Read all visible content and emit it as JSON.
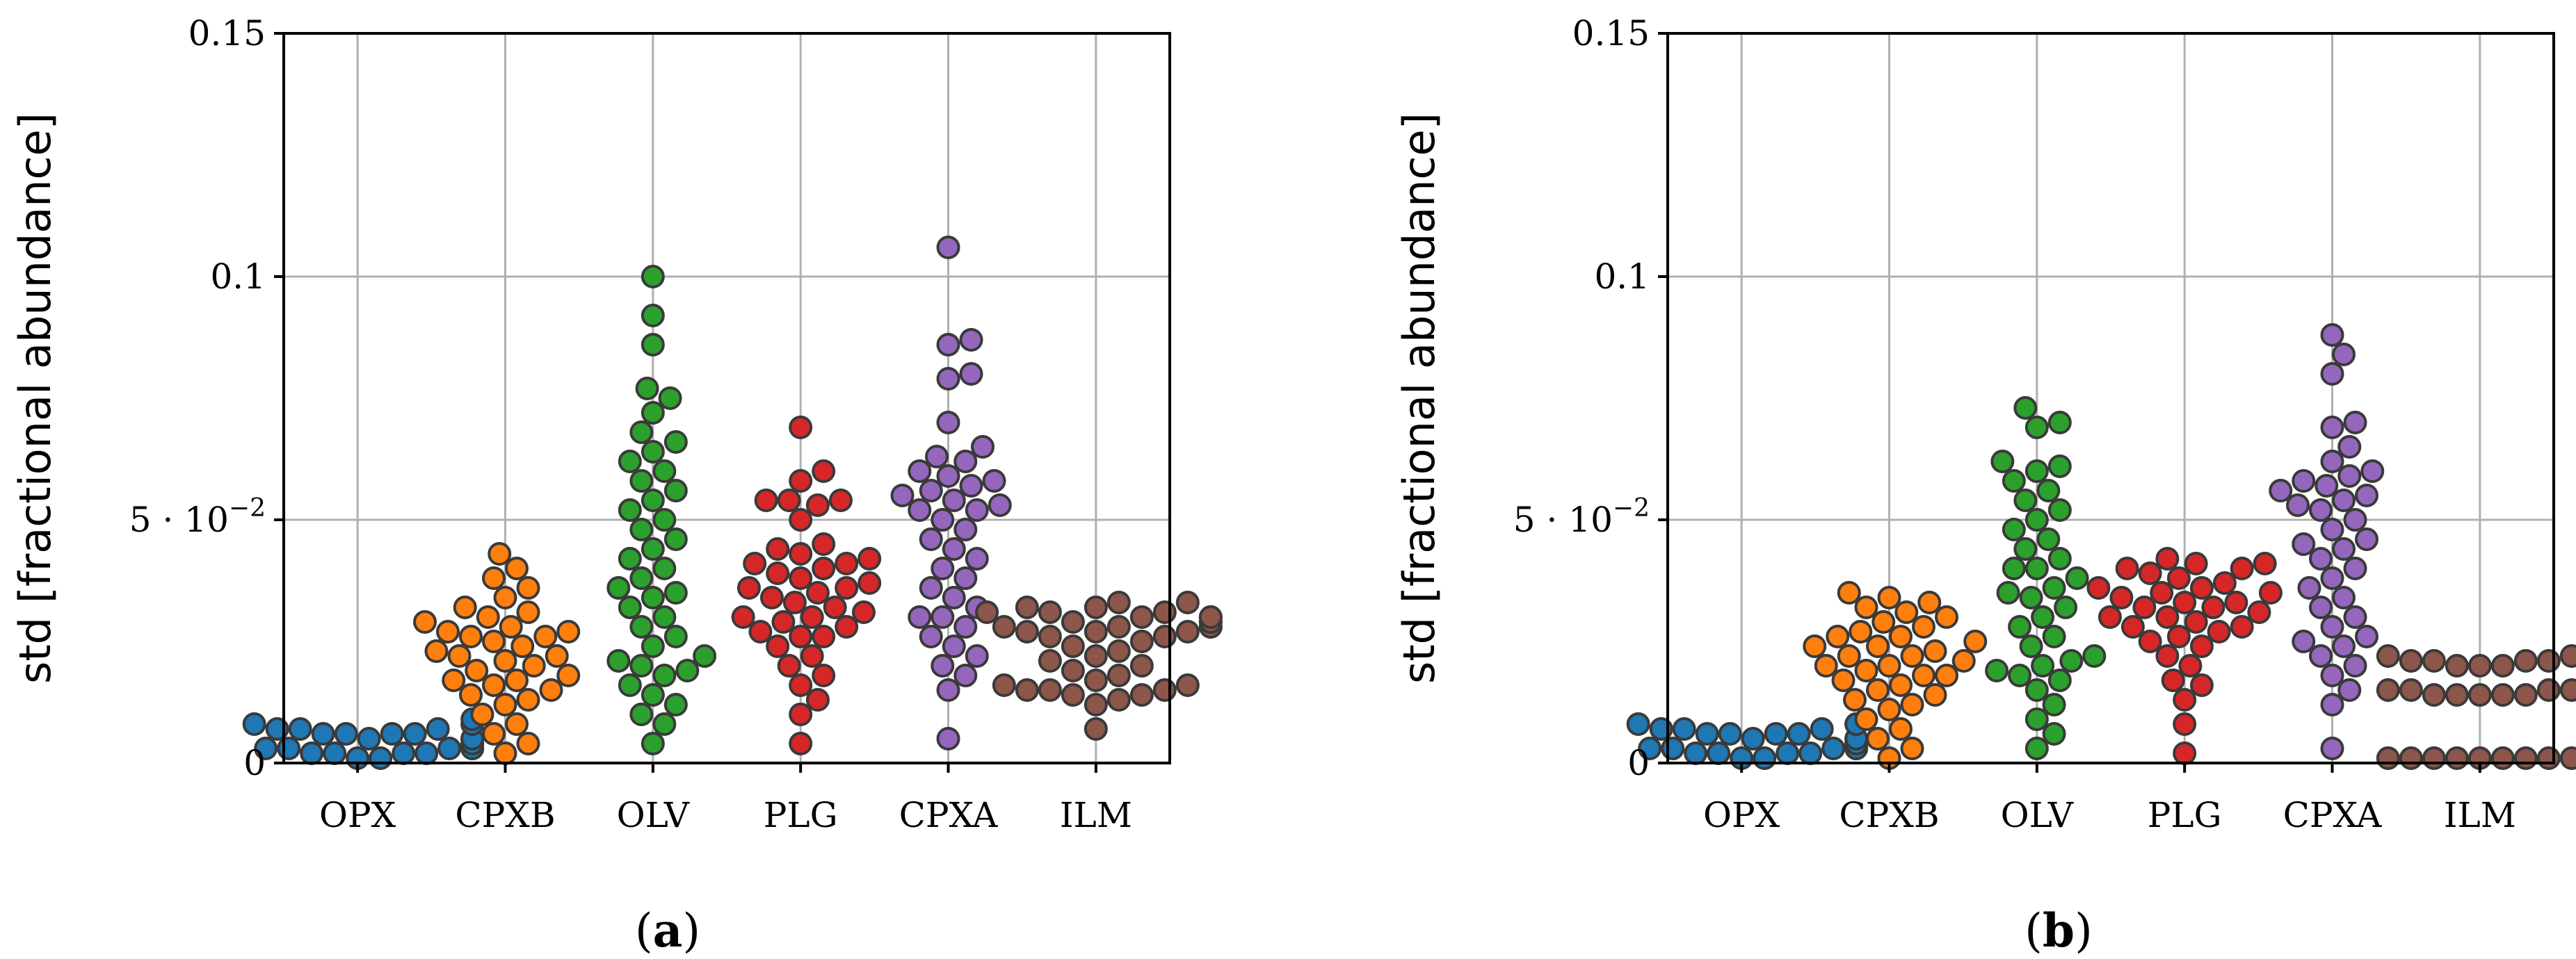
{
  "chart_data": [
    {
      "type": "scatter",
      "subtype": "swarm",
      "panel_label": {
        "open": "(",
        "letter": "a",
        "close": ")"
      },
      "ylabel": "std [fractional abundance]",
      "ylim": [
        0,
        0.15
      ],
      "yticks": [
        {
          "value": 0,
          "label": "0"
        },
        {
          "value": 0.05,
          "label": "5 · 10",
          "sup": "−2"
        },
        {
          "value": 0.1,
          "label": "0.1"
        },
        {
          "value": 0.15,
          "label": "0.15"
        }
      ],
      "grid": true,
      "categories": [
        "OPX",
        "CPXB",
        "OLV",
        "PLG",
        "CPXA",
        "ILM"
      ],
      "colors": [
        "#1f77b4",
        "#ff7f0e",
        "#2ca02c",
        "#d62728",
        "#9467bd",
        "#8c564b"
      ],
      "series": [
        {
          "name": "OPX",
          "values": [
            0.001,
            0.002,
            0.002,
            0.003,
            0.003,
            0.003,
            0.004,
            0.004,
            0.004,
            0.005,
            0.005,
            0.005,
            0.006,
            0.006,
            0.006,
            0.007,
            0.007,
            0.007,
            0.008,
            0.008,
            0.008,
            0.009,
            0.002,
            0.004,
            0.006,
            0.003,
            0.005,
            0.001,
            0.002,
            0.003
          ]
        },
        {
          "name": "CPXB",
          "values": [
            0.002,
            0.004,
            0.006,
            0.008,
            0.01,
            0.012,
            0.013,
            0.014,
            0.015,
            0.016,
            0.017,
            0.018,
            0.019,
            0.02,
            0.021,
            0.022,
            0.023,
            0.024,
            0.025,
            0.026,
            0.027,
            0.027,
            0.028,
            0.029,
            0.03,
            0.031,
            0.032,
            0.034,
            0.036,
            0.038,
            0.04,
            0.043,
            0.017,
            0.022,
            0.026
          ]
        },
        {
          "name": "OLV",
          "values": [
            0.004,
            0.008,
            0.01,
            0.012,
            0.014,
            0.016,
            0.018,
            0.019,
            0.02,
            0.021,
            0.022,
            0.024,
            0.026,
            0.028,
            0.03,
            0.032,
            0.034,
            0.035,
            0.036,
            0.038,
            0.04,
            0.042,
            0.044,
            0.046,
            0.048,
            0.05,
            0.052,
            0.054,
            0.056,
            0.058,
            0.06,
            0.062,
            0.064,
            0.066,
            0.068,
            0.072,
            0.075,
            0.077,
            0.086,
            0.092,
            0.1
          ]
        },
        {
          "name": "PLG",
          "values": [
            0.004,
            0.01,
            0.013,
            0.016,
            0.018,
            0.02,
            0.022,
            0.024,
            0.026,
            0.027,
            0.028,
            0.029,
            0.03,
            0.031,
            0.032,
            0.033,
            0.034,
            0.035,
            0.036,
            0.037,
            0.038,
            0.039,
            0.04,
            0.041,
            0.042,
            0.043,
            0.044,
            0.045,
            0.05,
            0.053,
            0.054,
            0.054,
            0.054,
            0.058,
            0.06,
            0.069,
            0.03,
            0.036,
            0.041,
            0.026
          ]
        },
        {
          "name": "CPXA",
          "values": [
            0.005,
            0.015,
            0.018,
            0.02,
            0.022,
            0.024,
            0.026,
            0.028,
            0.03,
            0.032,
            0.034,
            0.036,
            0.038,
            0.04,
            0.042,
            0.044,
            0.046,
            0.048,
            0.05,
            0.052,
            0.053,
            0.054,
            0.055,
            0.056,
            0.057,
            0.058,
            0.059,
            0.06,
            0.062,
            0.063,
            0.065,
            0.07,
            0.079,
            0.08,
            0.086,
            0.087,
            0.106,
            0.03,
            0.052
          ]
        },
        {
          "name": "ILM",
          "values": [
            0.007,
            0.012,
            0.013,
            0.014,
            0.015,
            0.015,
            0.016,
            0.016,
            0.017,
            0.018,
            0.019,
            0.02,
            0.021,
            0.022,
            0.023,
            0.024,
            0.025,
            0.026,
            0.026,
            0.027,
            0.027,
            0.028,
            0.028,
            0.028,
            0.029,
            0.029,
            0.029,
            0.03,
            0.03,
            0.031,
            0.031,
            0.032,
            0.032,
            0.033,
            0.033,
            0.027,
            0.028,
            0.029,
            0.03,
            0.031,
            0.014,
            0.015
          ]
        }
      ]
    },
    {
      "type": "scatter",
      "subtype": "swarm",
      "panel_label": {
        "open": "(",
        "letter": "b",
        "close": ")"
      },
      "ylabel": "std [fractional abundance]",
      "ylim": [
        0,
        0.15
      ],
      "yticks": [
        {
          "value": 0,
          "label": "0"
        },
        {
          "value": 0.05,
          "label": "5 · 10",
          "sup": "−2"
        },
        {
          "value": 0.1,
          "label": "0.1"
        },
        {
          "value": 0.15,
          "label": "0.15"
        }
      ],
      "grid": true,
      "categories": [
        "OPX",
        "CPXB",
        "OLV",
        "PLG",
        "CPXA",
        "ILM"
      ],
      "colors": [
        "#1f77b4",
        "#ff7f0e",
        "#2ca02c",
        "#d62728",
        "#9467bd",
        "#8c564b"
      ],
      "series": [
        {
          "name": "OPX",
          "values": [
            0.001,
            0.002,
            0.002,
            0.003,
            0.003,
            0.003,
            0.004,
            0.004,
            0.004,
            0.005,
            0.005,
            0.005,
            0.006,
            0.006,
            0.006,
            0.007,
            0.007,
            0.007,
            0.008,
            0.008,
            0.008,
            0.002,
            0.004,
            0.006,
            0.003,
            0.005,
            0.001,
            0.002,
            0.003,
            0.004
          ]
        },
        {
          "name": "CPXB",
          "values": [
            0.001,
            0.003,
            0.005,
            0.007,
            0.009,
            0.011,
            0.012,
            0.013,
            0.014,
            0.015,
            0.016,
            0.017,
            0.018,
            0.019,
            0.02,
            0.021,
            0.022,
            0.023,
            0.024,
            0.025,
            0.026,
            0.027,
            0.028,
            0.029,
            0.03,
            0.031,
            0.032,
            0.033,
            0.034,
            0.035,
            0.018,
            0.022,
            0.026,
            0.02,
            0.024
          ]
        },
        {
          "name": "OLV",
          "values": [
            0.003,
            0.006,
            0.009,
            0.012,
            0.015,
            0.017,
            0.018,
            0.019,
            0.02,
            0.021,
            0.022,
            0.024,
            0.026,
            0.028,
            0.03,
            0.032,
            0.034,
            0.036,
            0.038,
            0.04,
            0.042,
            0.044,
            0.046,
            0.048,
            0.05,
            0.052,
            0.054,
            0.056,
            0.058,
            0.06,
            0.061,
            0.062,
            0.069,
            0.07,
            0.073,
            0.04,
            0.035
          ]
        },
        {
          "name": "PLG",
          "values": [
            0.002,
            0.008,
            0.013,
            0.016,
            0.017,
            0.02,
            0.022,
            0.024,
            0.025,
            0.026,
            0.027,
            0.028,
            0.029,
            0.03,
            0.031,
            0.032,
            0.033,
            0.034,
            0.035,
            0.036,
            0.036,
            0.037,
            0.038,
            0.039,
            0.04,
            0.04,
            0.041,
            0.041,
            0.042,
            0.03,
            0.033,
            0.035,
            0.032,
            0.028
          ]
        },
        {
          "name": "CPXA",
          "values": [
            0.003,
            0.012,
            0.015,
            0.018,
            0.02,
            0.022,
            0.024,
            0.026,
            0.028,
            0.03,
            0.032,
            0.034,
            0.036,
            0.038,
            0.04,
            0.042,
            0.044,
            0.046,
            0.048,
            0.05,
            0.052,
            0.053,
            0.054,
            0.055,
            0.056,
            0.057,
            0.058,
            0.059,
            0.06,
            0.062,
            0.065,
            0.069,
            0.07,
            0.08,
            0.084,
            0.088,
            0.025,
            0.045
          ]
        },
        {
          "name": "ILM",
          "values": [
            0.001,
            0.001,
            0.001,
            0.001,
            0.001,
            0.001,
            0.001,
            0.001,
            0.001,
            0.001,
            0.002,
            0.002,
            0.002,
            0.014,
            0.014,
            0.014,
            0.014,
            0.015,
            0.015,
            0.015,
            0.015,
            0.015,
            0.015,
            0.016,
            0.016,
            0.016,
            0.02,
            0.02,
            0.021,
            0.021,
            0.021,
            0.021,
            0.022,
            0.022,
            0.022,
            0.022,
            0.023,
            0.002,
            0.002,
            0.014,
            0.02
          ]
        }
      ]
    }
  ]
}
